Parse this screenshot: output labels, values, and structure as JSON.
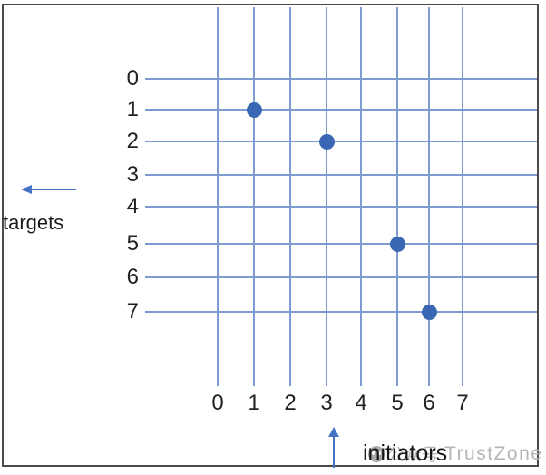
{
  "diagram": {
    "y_axis_label": "targets",
    "x_axis_label": "initiators",
    "row_labels": [
      "0",
      "1",
      "2",
      "3",
      "4",
      "5",
      "6",
      "7"
    ],
    "col_labels": [
      "0",
      "1",
      "2",
      "3",
      "4",
      "5",
      "6",
      "7"
    ],
    "points": [
      {
        "initiator": 1,
        "target": 1
      },
      {
        "initiator": 3,
        "target": 2
      },
      {
        "initiator": 5,
        "target": 5
      },
      {
        "initiator": 6,
        "target": 7
      }
    ],
    "colors": {
      "grid_line": "#7d9ad3",
      "dot": "#3a67b4",
      "arrow": "#4472c4",
      "label": "#222222",
      "border": "#4a4a4a",
      "watermark": "#b5b5b5"
    }
  },
  "watermark": {
    "icon": "wechat-official-account-icon",
    "text_cn": "公众号",
    "text_en": "TrustZone"
  }
}
